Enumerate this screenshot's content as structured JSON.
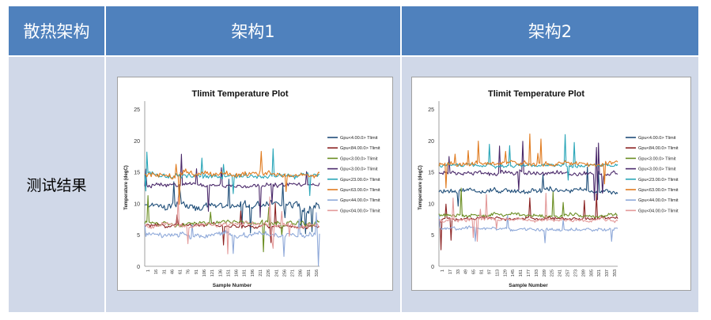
{
  "table": {
    "header_col0": "散热架构",
    "header_col1": "架构1",
    "header_col2": "架构2",
    "row_label": "测试结果"
  },
  "chart_data": [
    {
      "type": "line",
      "title": "Tlimit Temperature Plot",
      "xlabel": "Sample Number",
      "ylabel": "Temperature (degC)",
      "ylim": [
        0,
        25
      ],
      "yticks": [
        0,
        5,
        10,
        15,
        20,
        25
      ],
      "xticks": [
        "1",
        "16",
        "31",
        "46",
        "61",
        "76",
        "91",
        "106",
        "121",
        "136",
        "151",
        "166",
        "181",
        "196",
        "211",
        "226",
        "241",
        "256",
        "271",
        "286",
        "301",
        "316"
      ],
      "x_max": 325,
      "grid": false,
      "legend_position": "right",
      "series": [
        {
          "name": "Gpu<4.00.0> Tlimit",
          "color": "#1f4e79",
          "mean": 9.6,
          "spread": 0.9,
          "spikes": 0.06
        },
        {
          "name": "Gpu<84.00.0> Tlimit",
          "color": "#8b2323",
          "mean": 6.4,
          "spread": 0.5,
          "spikes": 0.03
        },
        {
          "name": "Gpu<3.00.0> Tlimit",
          "color": "#6b8e23",
          "mean": 6.8,
          "spread": 0.6,
          "spikes": 0.03
        },
        {
          "name": "Gpu<3.00.0> Tlimit",
          "color": "#4b2a6b",
          "mean": 12.9,
          "spread": 0.5,
          "spikes": 0.05
        },
        {
          "name": "Gpu<23.00.0> Tlimit",
          "color": "#2aa6b8",
          "mean": 14.4,
          "spread": 0.6,
          "spikes": 0.04
        },
        {
          "name": "Gpu<63.00.0> Tlimit",
          "color": "#e07b1f",
          "mean": 14.6,
          "spread": 0.7,
          "spikes": 0.04
        },
        {
          "name": "Gpu<44.00.0> Tlimit",
          "color": "#8fa9d9",
          "mean": 5.0,
          "spread": 0.6,
          "spikes": 0.03
        },
        {
          "name": "Gpu<04.00.0> Tlimit",
          "color": "#e39a9a",
          "mean": 6.6,
          "spread": 0.5,
          "spikes": 0.03
        }
      ]
    },
    {
      "type": "line",
      "title": "Tlimit Temperature Plot",
      "xlabel": "Sample Number",
      "ylabel": "Temperature (degC)",
      "ylim": [
        0,
        25
      ],
      "yticks": [
        0,
        5,
        10,
        15,
        20,
        25
      ],
      "xticks": [
        "1",
        "17",
        "33",
        "49",
        "65",
        "81",
        "97",
        "113",
        "129",
        "145",
        "161",
        "177",
        "193",
        "209",
        "225",
        "241",
        "257",
        "273",
        "289",
        "305",
        "321",
        "337",
        "353"
      ],
      "x_max": 355,
      "grid": false,
      "legend_position": "right",
      "series": [
        {
          "name": "Gpu<4.00.0> Tlimit",
          "color": "#1f4e79",
          "mean": 12.0,
          "spread": 0.6,
          "spikes": 0.04
        },
        {
          "name": "Gpu<84.00.0> Tlimit",
          "color": "#8b2323",
          "mean": 7.6,
          "spread": 0.4,
          "spikes": 0.02
        },
        {
          "name": "Gpu<3.00.0> Tlimit",
          "color": "#6b8e23",
          "mean": 8.1,
          "spread": 0.4,
          "spikes": 0.02
        },
        {
          "name": "Gpu<3.00.0> Tlimit",
          "color": "#4b2a6b",
          "mean": 14.8,
          "spread": 0.5,
          "spikes": 0.03
        },
        {
          "name": "Gpu<23.00.0> Tlimit",
          "color": "#2aa6b8",
          "mean": 16.0,
          "spread": 0.4,
          "spikes": 0.03
        },
        {
          "name": "Gpu<63.00.0> Tlimit",
          "color": "#e07b1f",
          "mean": 16.3,
          "spread": 0.5,
          "spikes": 0.04
        },
        {
          "name": "Gpu<44.00.0> Tlimit",
          "color": "#8fa9d9",
          "mean": 6.0,
          "spread": 0.4,
          "spikes": 0.02
        },
        {
          "name": "Gpu<04.00.0> Tlimit",
          "color": "#e39a9a",
          "mean": 7.3,
          "spread": 0.4,
          "spikes": 0.02
        }
      ]
    }
  ]
}
